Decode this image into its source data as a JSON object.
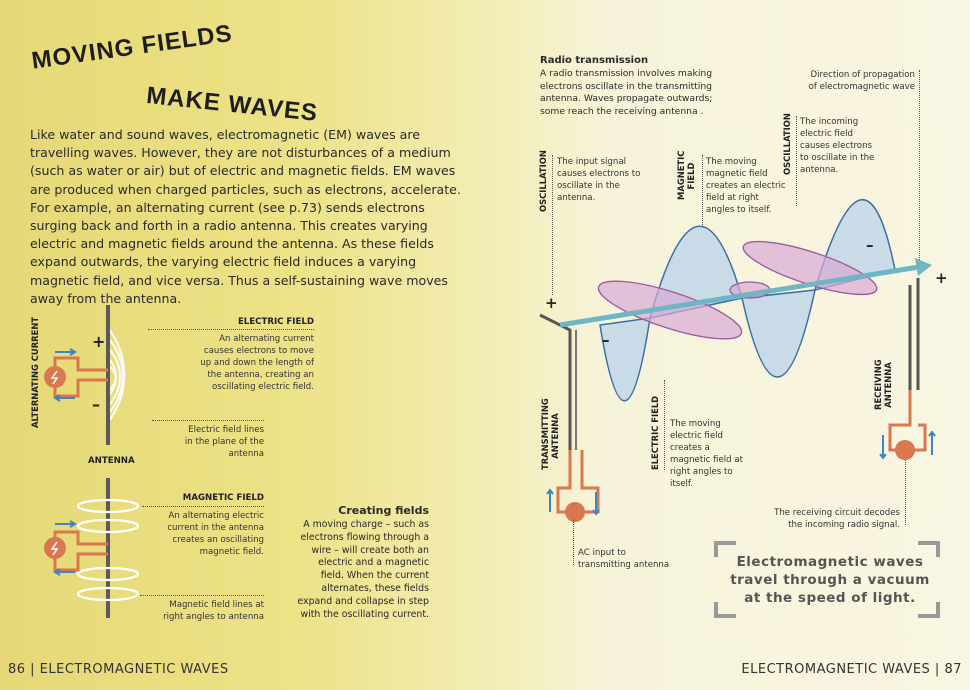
{
  "title": {
    "line1": "MOVING FIELDS",
    "line2": "MAKE WAVES"
  },
  "intro": "Like water and sound waves, electromagnetic (EM) waves are travelling waves. However, they are not disturbances of a medium (such as water or air) but of electric and magnetic fields. EM waves are produced when charged particles, such as electrons, accelerate. For example, an alternating current (see p.73) sends electrons surging back and forth in a radio antenna. This creates varying electric and magnetic fields around the antenna. As these fields expand outwards, the varying electric field induces a varying magnetic field, and vice versa. Thus a self-sustaining wave moves away from the antenna.",
  "left_diagram": {
    "alternating_current": "ALTERNATING CURRENT",
    "antenna": "ANTENNA",
    "plus": "+",
    "minus": "–",
    "electric_field_heading": "ELECTRIC FIELD",
    "electric_field_text": "An alternating current causes electrons to move up and down the length of the antenna, creating an oscillating electric field.",
    "electric_lines_text": "Electric field lines in the plane of the antenna",
    "magnetic_field_heading": "MAGNETIC FIELD",
    "magnetic_field_text": "An alternating electric current in the antenna creates an oscillating magnetic field.",
    "magnetic_lines_text": "Magnetic field lines at right angles to antenna"
  },
  "creating_fields": {
    "heading": "Creating fields",
    "text": "A moving charge – such as electrons flowing through a wire – will create both an electric and a magnetic field. When the current alternates, these fields expand and collapse in step with the oscillating current."
  },
  "radio": {
    "heading": "Radio transmission",
    "text": "A radio transmission involves making electrons oscillate in the transmitting antenna. Waves propagate outwards; some reach the receiving antenna ."
  },
  "right_diagram": {
    "direction": "Direction of propagation of electromagnetic wave",
    "oscillation": "OSCILLATION",
    "oscillation_tx_text": "The input signal causes electrons to oscillate in the antenna.",
    "magnetic_field": "MAGNETIC FIELD",
    "magnetic_text": "The moving magnetic field creates an electric field at right angles to itself.",
    "oscillation_rx_text": "The incoming electric field causes electrons to oscillate in the antenna.",
    "electric_field": "ELECTRIC FIELD",
    "electric_text": "The moving electric field creates a magnetic field at right angles to itself.",
    "transmitting_antenna": "TRANSMITTING ANTENNA",
    "receiving_antenna": "RECEIVING ANTENNA",
    "ac_input": "AC input to transmitting antenna",
    "receiving_circuit": "The receiving circuit decodes the incoming radio signal.",
    "plus": "+",
    "minus": "–"
  },
  "quote": "Electromagnetic waves travel through a vacuum at the speed of light.",
  "footer": {
    "left": "86 | ELECTROMAGNETIC WAVES",
    "right": "ELECTROMAGNETIC WAVES | 87"
  },
  "colors": {
    "electric": "#b9d3ea",
    "magnetic": "#d9a9d6",
    "axis": "#6fb6c4",
    "circuit": "#d9774f",
    "arrow": "#3b86c3"
  }
}
